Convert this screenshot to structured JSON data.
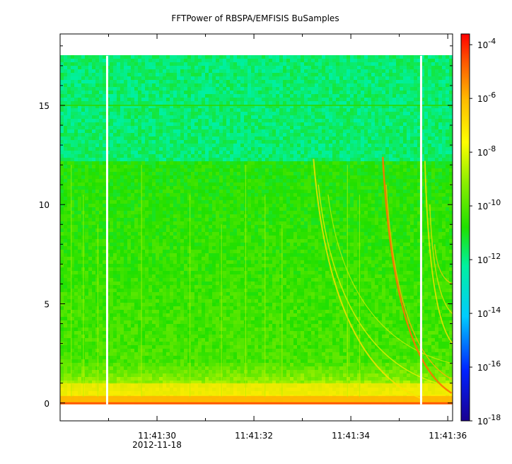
{
  "chart_data": {
    "type": "heatmap",
    "title": "FFTPower of RBSPA/EMFISIS  BuSamples",
    "xlabel": "",
    "ylabel": "",
    "x_ticks": [
      {
        "label": "11:41:30",
        "sublabel": "2012-11-18",
        "t": 29.62
      },
      {
        "label": "11:41:32",
        "t": 31.62
      },
      {
        "label": "11:41:34",
        "t": 33.62
      },
      {
        "label": "11:41:36",
        "t": 35.62
      }
    ],
    "x_range_seconds": [
      27.62,
      35.72
    ],
    "y_ticks": [
      0,
      5,
      10,
      15
    ],
    "ylim": [
      -0.9,
      18.6
    ],
    "data_extent": {
      "freq_max": 17.5,
      "dense_band_top": 12.2
    },
    "gaps_seconds": [
      28.59,
      35.07
    ],
    "colorbar": {
      "scale": "log",
      "range_exponent": [
        -18,
        -3.6
      ],
      "ticks": [
        {
          "base": "10",
          "exp": "-4",
          "e": -4
        },
        {
          "base": "10",
          "exp": "-6",
          "e": -6
        },
        {
          "base": "10",
          "exp": "-8",
          "e": -8
        },
        {
          "base": "10",
          "exp": "-10",
          "e": -10
        },
        {
          "base": "10",
          "exp": "-12",
          "e": -12
        },
        {
          "base": "10",
          "exp": "-14",
          "e": -14
        },
        {
          "base": "10",
          "exp": "-16",
          "e": -16
        },
        {
          "base": "10",
          "exp": "-18",
          "e": -18
        }
      ]
    }
  }
}
